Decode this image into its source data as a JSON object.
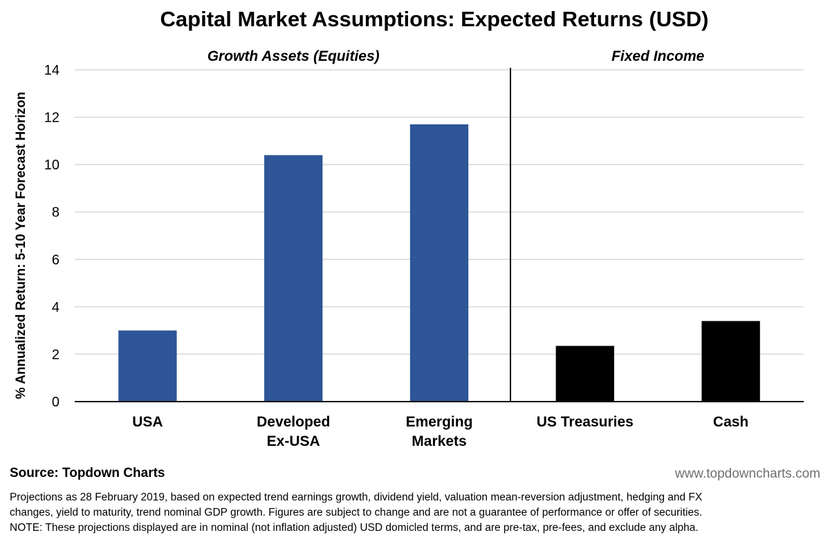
{
  "chart_data": {
    "type": "bar",
    "title": "Capital Market Assumptions: Expected Returns (USD)",
    "ylabel": "% Annualized Return: 5-10 Year Forecast Horizon",
    "ylim": [
      0,
      14
    ],
    "yticks": [
      0,
      2,
      4,
      6,
      8,
      10,
      12,
      14
    ],
    "grid": true,
    "groups": [
      {
        "label": "Growth Assets (Equities)",
        "color": "#2e5597",
        "categories": [
          [
            "USA"
          ],
          [
            "Developed",
            "Ex-USA"
          ],
          [
            "Emerging",
            "Markets"
          ]
        ],
        "values": [
          3.0,
          10.4,
          11.7
        ]
      },
      {
        "label": "Fixed Income",
        "color": "#000000",
        "categories": [
          [
            "US Treasuries"
          ],
          [
            "Cash"
          ]
        ],
        "values": [
          2.35,
          3.4
        ]
      }
    ]
  },
  "footer": {
    "source": "Source: Topdown Charts",
    "website": "www.topdowncharts.com",
    "notes": [
      "Projections as 28 February 2019, based on expected trend earnings growth, dividend yield, valuation mean-reversion adjustment, hedging and FX",
      "changes, yield to maturity, trend nominal GDP growth.  Figures are subject to change and are not a guarantee of performance or offer of securities.",
      "NOTE: These projections displayed are in nominal (not inflation adjusted) USD domicled terms, and are pre-tax, pre-fees, and exclude any alpha."
    ]
  }
}
